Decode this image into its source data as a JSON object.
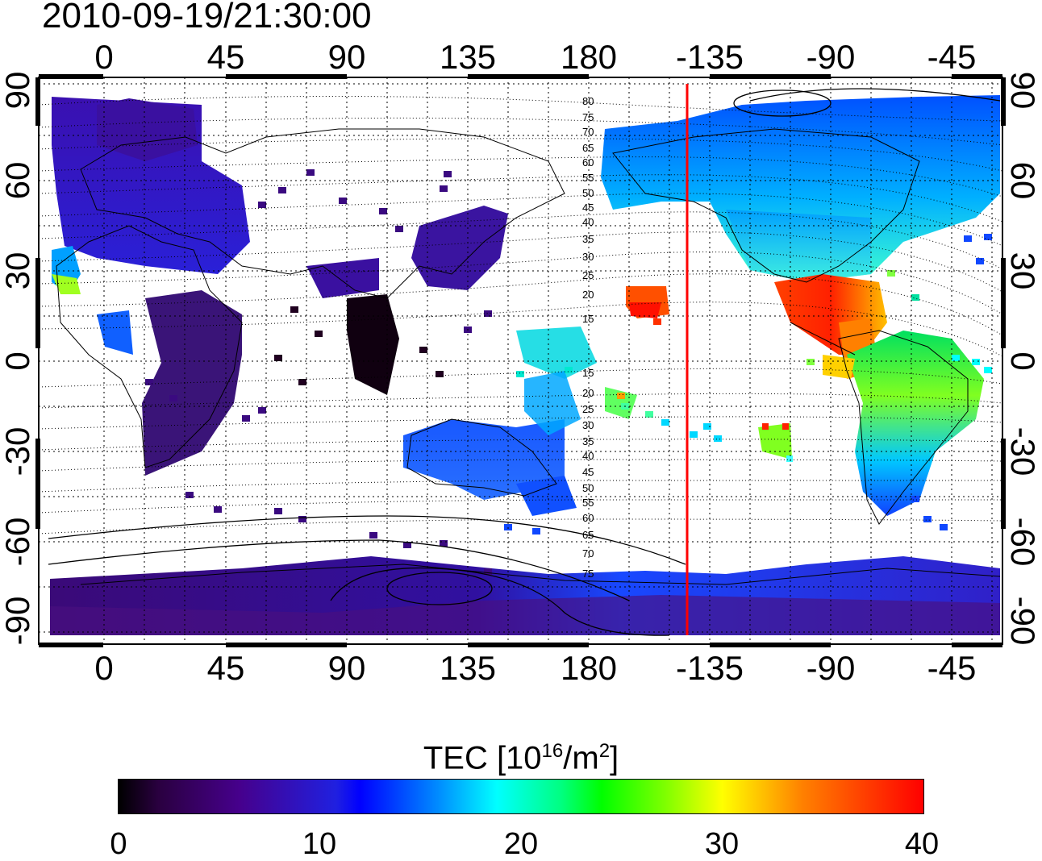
{
  "title": "2010-09-19/21:30:00",
  "top_ticks": [
    "0",
    "45",
    "90",
    "135",
    "180",
    "-135",
    "-90",
    "-45"
  ],
  "bottom_ticks": [
    "0",
    "45",
    "90",
    "135",
    "180",
    "-135",
    "-90",
    "-45"
  ],
  "left_ticks": [
    "90",
    "60",
    "30",
    "0",
    "-30",
    "-60",
    "-90"
  ],
  "right_ticks": [
    "90",
    "60",
    "30",
    "0",
    "-30",
    "-60",
    "-90"
  ],
  "contour_labels_upper": [
    "80",
    "75",
    "70",
    "65",
    "60",
    "55",
    "50",
    "45",
    "40",
    "35",
    "30",
    "25",
    "20",
    "15"
  ],
  "contour_labels_lower": [
    "15",
    "20",
    "25",
    "30",
    "35",
    "40",
    "45",
    "50",
    "55",
    "60",
    "65",
    "70",
    "75"
  ],
  "colorbar": {
    "label_text": "TEC  [10",
    "label_sup1": "16",
    "label_mid": "/m",
    "label_sup2": "2",
    "label_end": "]",
    "ticks": [
      "0",
      "10",
      "20",
      "30",
      "40"
    ],
    "min": 0,
    "max": 40,
    "colors": [
      "#000000",
      "#46008c",
      "#0000ff",
      "#00ffff",
      "#00ff00",
      "#ffff00",
      "#ff0000"
    ]
  },
  "terminator_line_color": "#ff0000"
}
